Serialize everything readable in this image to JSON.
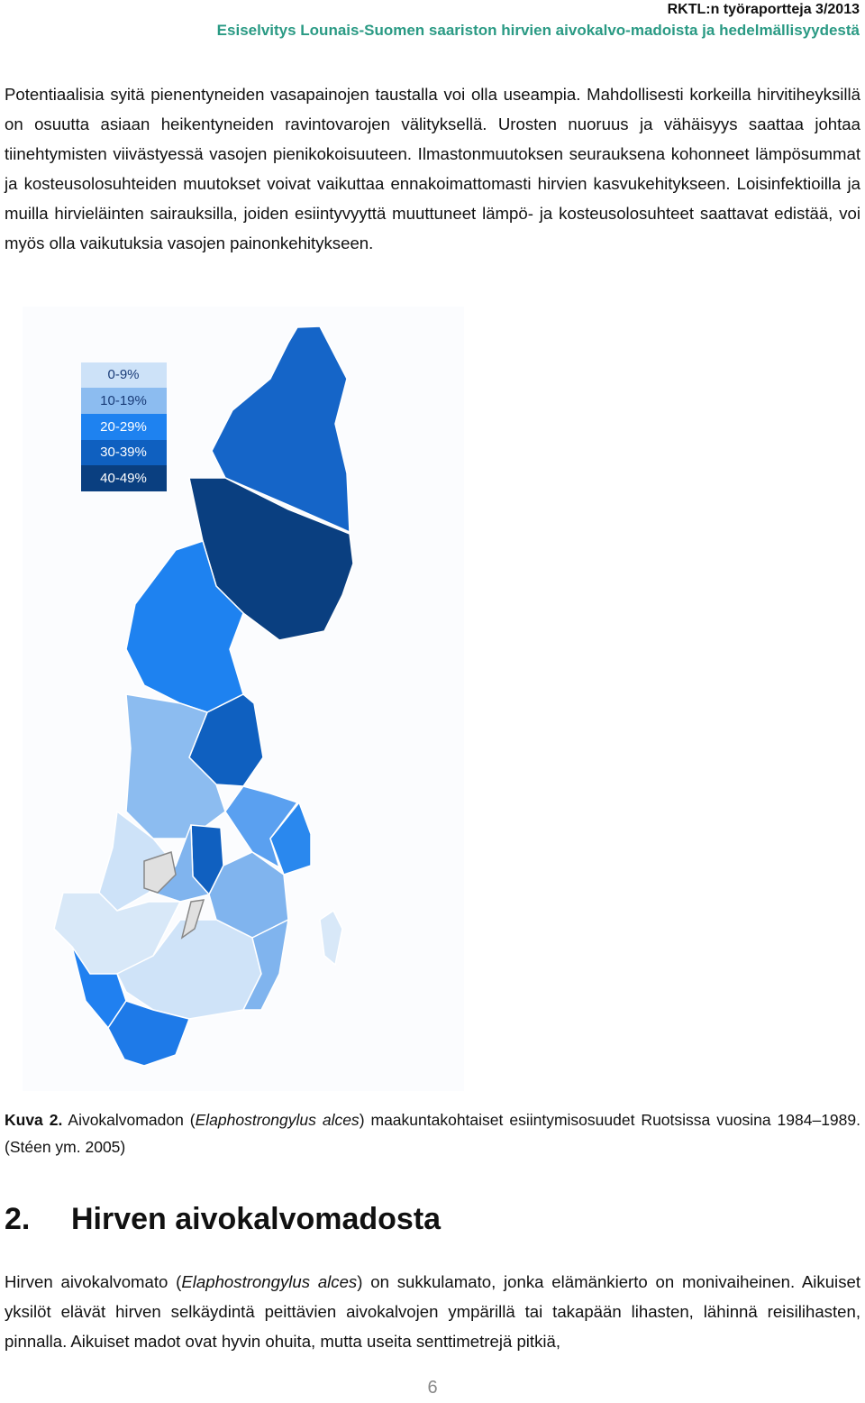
{
  "header": {
    "series": "RKTL:n työraportteja 3/2013",
    "title": "Esiselvitys Lounais-Suomen saariston hirvien aivokalvo-madoista ja hedelmällisyydestä"
  },
  "paragraph1": "Potentiaalisia syitä pienentyneiden vasapainojen taustalla voi olla useampia. Mahdollisesti korkeilla hirvitiheyksillä on osuutta asiaan heikentyneiden ravintovarojen välityksellä. Urosten nuoruus ja vähäisyys saattaa johtaa tiinehtymisten viivästyessä vasojen pienikokoisuuteen. Ilmastonmuutoksen seurauksena kohonneet lämpösummat ja kosteusolosuhteiden muutokset voivat vaikuttaa ennakoimattomasti hirvien kasvukehitykseen. Loisinfektioilla ja muilla hirvieläinten sairauksilla, joiden esiintyvyyttä muuttuneet lämpö- ja kosteusolosuhteet saattavat edistää, voi myös olla vaikutuksia vasojen painonkehitykseen.",
  "figure": {
    "legend": [
      "0-9%",
      "10-19%",
      "20-29%",
      "30-39%",
      "40-49%"
    ],
    "caption": {
      "label": "Kuva 2.",
      "before": "Aivokalvomadon (",
      "italic": "Elaphostrongylus alces",
      "after": ") maakuntakohtaiset esiintymisosuudet Ruotsissa vuosina 1984–1989. (Stéen ym. 2005)"
    }
  },
  "section": {
    "number": "2.",
    "title": "Hirven aivokalvomadosta"
  },
  "paragraph2": {
    "before": "Hirven aivokalvomato (",
    "italic": "Elaphostrongylus alces",
    "after": ") on sukkulamato, jonka elämänkierto on monivaiheinen. Aikuiset yksilöt elävät hirven selkäydintä peittävien aivokalvojen ympärillä tai takapään lihasten, lähinnä reisilihasten, pinnalla. Aikuiset madot ovat hyvin ohuita, mutta useita senttimetrejä pitkiä,"
  },
  "footer": {
    "page": 6
  }
}
